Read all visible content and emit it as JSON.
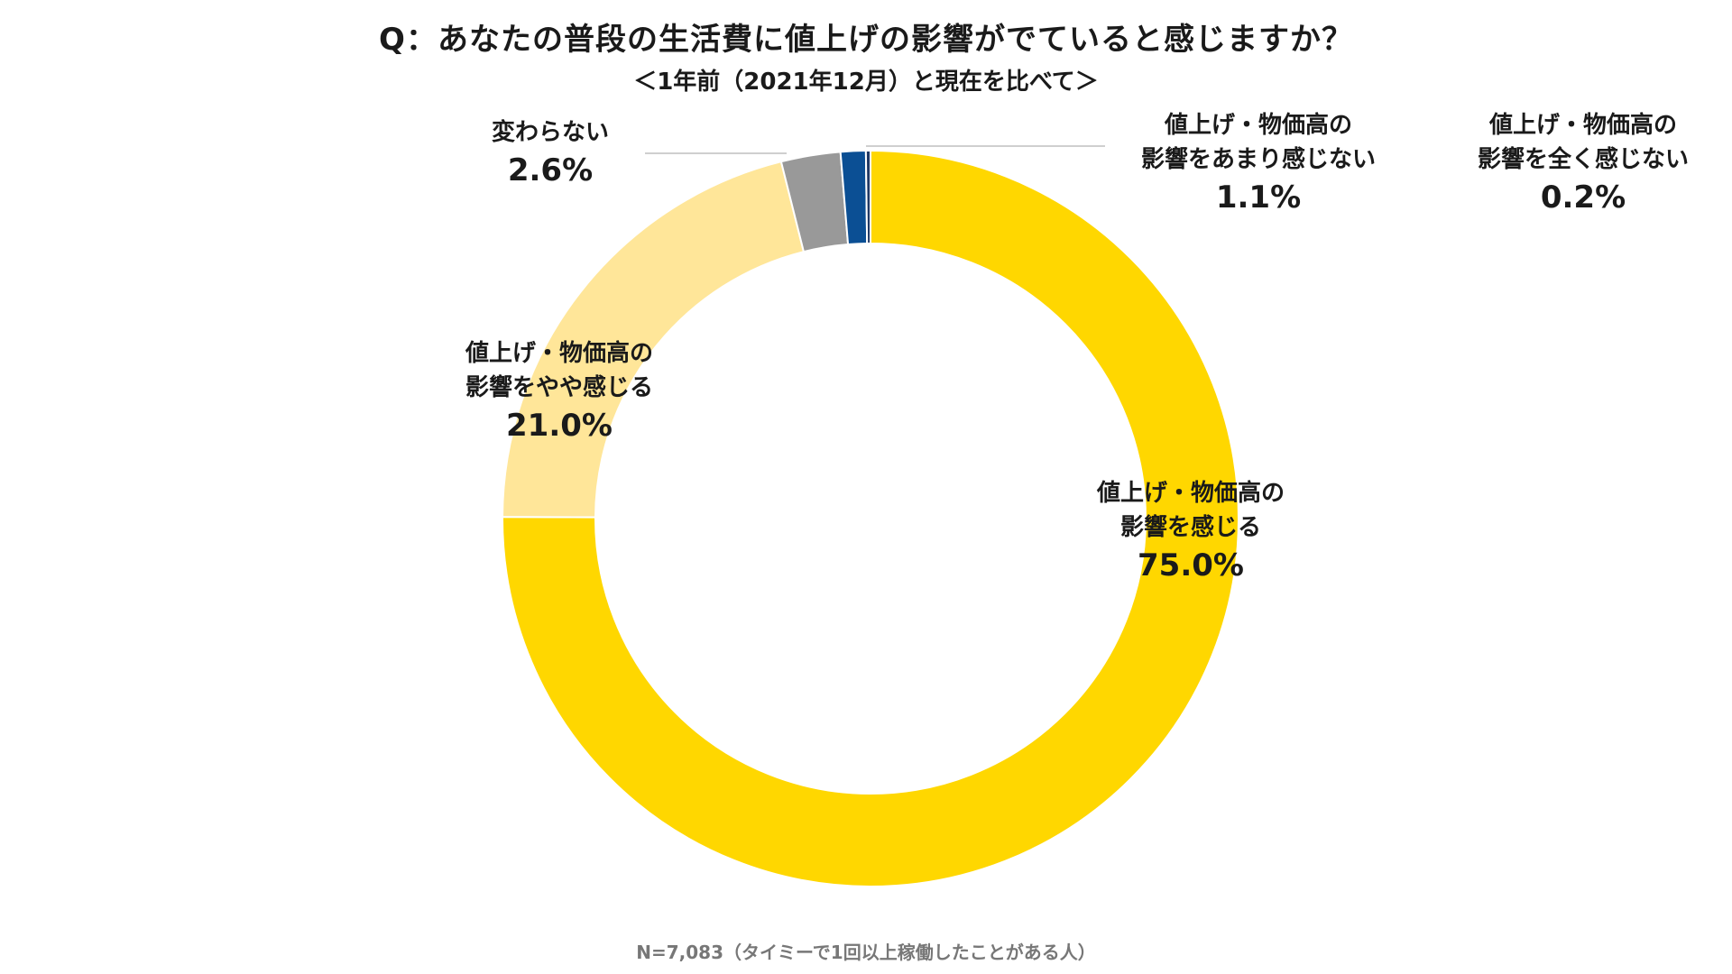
{
  "title": "Q：あなたの普段の生活費に値上げの影響がでていると感じますか？",
  "subtitle": "＜1年前（2021年12月）と現在を比べて＞",
  "note": "N=7,083（タイミーで1回以上稼働したことがある人）",
  "chart_data": {
    "type": "pie",
    "donut": true,
    "title": "Q：あなたの普段の生活費に値上げの影響がでていると感じますか？",
    "subtitle": "＜1年前（2021年12月）と現在を比べて＞",
    "slices": [
      {
        "label_lines": [
          "値上げ・物価高の",
          "影響を感じる"
        ],
        "value": 75.0,
        "display": "75.0%",
        "color": "#FFD700"
      },
      {
        "label_lines": [
          "値上げ・物価高の",
          "影響をやや感じる"
        ],
        "value": 21.0,
        "display": "21.0%",
        "color": "#FFE699"
      },
      {
        "label_lines": [
          "変わらない"
        ],
        "value": 2.6,
        "display": "2.6%",
        "color": "#999999"
      },
      {
        "label_lines": [
          "値上げ・物価高の",
          "影響をあまり感じない"
        ],
        "value": 1.1,
        "display": "1.1%",
        "color": "#0B4F94"
      },
      {
        "label_lines": [
          "値上げ・物価高の",
          "影響を全く感じない"
        ],
        "value": 0.2,
        "display": "0.2%",
        "color": "#1F3864"
      }
    ]
  }
}
